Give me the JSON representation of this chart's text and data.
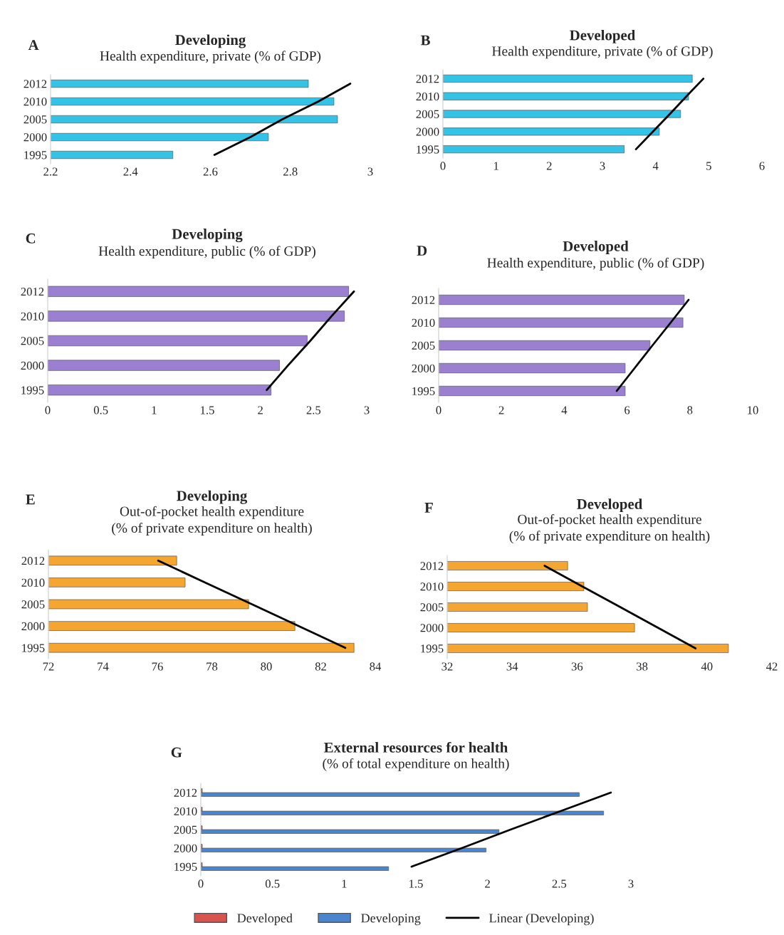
{
  "chart_data": [
    {
      "type": "bar",
      "orientation": "horizontal",
      "title": "Developing",
      "subtitle": "Health expenditure, private (% of GDP)",
      "annotations": [
        "A"
      ],
      "categories": [
        "2012",
        "2010",
        "2005",
        "2000",
        "1995"
      ],
      "xlim": [
        2.2,
        3
      ],
      "xticks": [
        2.2,
        2.4,
        2.6,
        2.8,
        3
      ],
      "grid": false,
      "legend": false,
      "series": [
        {
          "color": "#33c3e6",
          "values": [
            2.845,
            2.909,
            2.918,
            2.745,
            2.506
          ]
        },
        {
          "type": "line",
          "color": "#000000",
          "marker": "none",
          "line_style": "solid",
          "values": [
            2.95,
            2.87,
            2.78,
            2.7,
            2.61
          ]
        }
      ]
    },
    {
      "type": "bar",
      "orientation": "horizontal",
      "title": "Developed",
      "subtitle": "Health expenditure, private (% of GDP)",
      "annotations": [
        "B"
      ],
      "categories": [
        "2012",
        "2010",
        "2005",
        "2000",
        "1995"
      ],
      "xlim": [
        0,
        6
      ],
      "xticks": [
        0,
        1,
        2,
        3,
        4,
        5,
        6
      ],
      "grid": false,
      "legend": false,
      "series": [
        {
          "color": "#33c3e6",
          "values": [
            4.69,
            4.62,
            4.47,
            4.07,
            3.41
          ]
        },
        {
          "type": "line",
          "color": "#000000",
          "marker": "none",
          "line_style": "solid",
          "values": [
            4.9,
            4.58,
            4.27,
            3.95,
            3.63
          ]
        }
      ]
    },
    {
      "type": "bar",
      "orientation": "horizontal",
      "title": "Developing",
      "subtitle": "Health expenditure, public (% of GDP)",
      "annotations": [
        "C"
      ],
      "categories": [
        "2012",
        "2010",
        "2005",
        "2000",
        "1995"
      ],
      "xlim": [
        0,
        3
      ],
      "xticks": [
        0,
        0.5,
        1,
        1.5,
        2,
        2.5,
        3
      ],
      "grid": false,
      "legend": false,
      "series": [
        {
          "color": "#9b80d2",
          "values": [
            2.83,
            2.79,
            2.44,
            2.18,
            2.1
          ]
        },
        {
          "type": "line",
          "color": "#000000",
          "marker": "none",
          "line_style": "solid",
          "values": [
            2.88,
            2.67,
            2.47,
            2.26,
            2.06
          ]
        }
      ]
    },
    {
      "type": "bar",
      "orientation": "horizontal",
      "title": "Developed",
      "subtitle": "Health expenditure, public (% of GDP)",
      "annotations": [
        "D"
      ],
      "categories": [
        "2012",
        "2010",
        "2005",
        "2000",
        "1995"
      ],
      "xlim": [
        0,
        10
      ],
      "xticks": [
        0,
        2,
        4,
        6,
        8,
        10
      ],
      "grid": false,
      "legend": false,
      "series": [
        {
          "color": "#9b80d2",
          "values": [
            7.82,
            7.78,
            6.73,
            5.94,
            5.94
          ]
        },
        {
          "type": "line",
          "color": "#000000",
          "marker": "none",
          "line_style": "solid",
          "values": [
            7.96,
            7.39,
            6.81,
            6.24,
            5.67
          ]
        }
      ]
    },
    {
      "type": "bar",
      "orientation": "horizontal",
      "title": "Developing",
      "subtitle": "Out-of-pocket health expenditure\n(% of private expenditure on health)",
      "annotations": [
        "E"
      ],
      "categories": [
        "2012",
        "2010",
        "2005",
        "2000",
        "1995"
      ],
      "xlim": [
        72,
        84
      ],
      "xticks": [
        72,
        74,
        76,
        78,
        80,
        82,
        84
      ],
      "grid": false,
      "legend": false,
      "series": [
        {
          "color": "#f5a631",
          "values": [
            76.71,
            77.02,
            79.35,
            81.05,
            83.22
          ]
        },
        {
          "type": "line",
          "color": "#000000",
          "marker": "none",
          "line_style": "solid",
          "values": [
            76.03,
            77.75,
            79.47,
            81.18,
            82.9
          ]
        }
      ]
    },
    {
      "type": "bar",
      "orientation": "horizontal",
      "title": "Developed",
      "subtitle": "Out-of-pocket health expenditure\n(% of private expenditure on health)",
      "annotations": [
        "F"
      ],
      "categories": [
        "2012",
        "2010",
        "2005",
        "2000",
        "1995"
      ],
      "xlim": [
        32,
        42
      ],
      "xticks": [
        32,
        34,
        36,
        38,
        40,
        42
      ],
      "grid": false,
      "legend": false,
      "series": [
        {
          "color": "#f5a631",
          "values": [
            35.71,
            36.21,
            36.32,
            37.77,
            40.66
          ]
        },
        {
          "type": "line",
          "color": "#000000",
          "marker": "none",
          "line_style": "solid",
          "values": [
            35.0,
            36.16,
            37.33,
            38.49,
            39.65
          ]
        }
      ]
    },
    {
      "type": "bar",
      "orientation": "horizontal",
      "title": "External resources for health",
      "subtitle": "(% of total expenditure on health)",
      "annotations": [
        "G"
      ],
      "categories": [
        "2012",
        "2010",
        "2005",
        "2000",
        "1995"
      ],
      "xlim": [
        0,
        3
      ],
      "xticks": [
        0,
        0.5,
        1,
        1.5,
        2,
        2.5,
        3
      ],
      "grid": false,
      "legend": "bottom",
      "series": [
        {
          "name": "Developed",
          "color": "#d9534f",
          "values": [
            0.01,
            0.01,
            0.01,
            0.01,
            0.01
          ]
        },
        {
          "name": "Developing",
          "color": "#4a86d0",
          "values": [
            2.64,
            2.81,
            2.08,
            1.99,
            1.31
          ]
        },
        {
          "type": "line",
          "name": "Linear (Developing)",
          "color": "#000000",
          "marker": "none",
          "line_style": "solid",
          "values": [
            2.86,
            2.51,
            2.16,
            1.82,
            1.47
          ]
        }
      ]
    }
  ]
}
